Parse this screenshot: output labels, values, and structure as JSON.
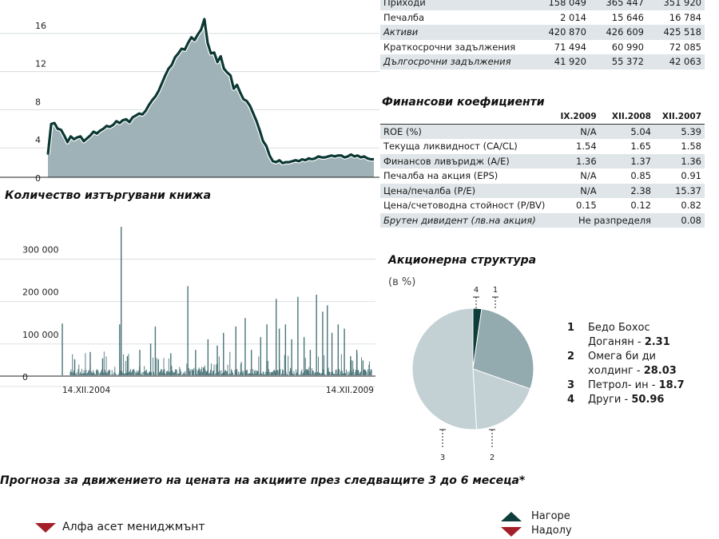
{
  "colors": {
    "area": "#9fb2b7",
    "line": "#0c3834",
    "bar": "#4a7478",
    "pie_main": "#c3d0d4",
    "pie_mid": "#93aaaf",
    "pie_dark": "#0f3e3a",
    "shade": "#dfe5e8",
    "down": "#a3202a"
  },
  "chart_data": [
    {
      "type": "area",
      "yticks": [
        "16",
        "12",
        "8",
        "4",
        "0"
      ],
      "ylim": [
        0,
        17
      ],
      "x": [
        0,
        1,
        2,
        3,
        4,
        5,
        6,
        7,
        8,
        9,
        10,
        11,
        12,
        13,
        14,
        15,
        16,
        17,
        18,
        19,
        20,
        21,
        22,
        23,
        24,
        25,
        26,
        27,
        28,
        29,
        30,
        31,
        32,
        33,
        34,
        35,
        36,
        37,
        38,
        39,
        40,
        41,
        42,
        43,
        44,
        45,
        46,
        47,
        48,
        49,
        50,
        51,
        52,
        53,
        54,
        55,
        56,
        57,
        58,
        59,
        60,
        61,
        62,
        63,
        64,
        65,
        66,
        67,
        68,
        69,
        70,
        71,
        72,
        73,
        74,
        75,
        76,
        77,
        78,
        79,
        80,
        81,
        82,
        83,
        84,
        85,
        86,
        87,
        88,
        89,
        90,
        91,
        92,
        93,
        94,
        95,
        96,
        97,
        98,
        99,
        100
      ],
      "values": [
        2.3,
        5.5,
        5.6,
        5.0,
        4.9,
        4.3,
        3.6,
        4.2,
        3.9,
        4.1,
        4.2,
        3.7,
        4.0,
        4.3,
        4.7,
        4.5,
        4.8,
        5.0,
        5.3,
        5.2,
        5.4,
        5.8,
        5.6,
        5.9,
        6.0,
        5.7,
        6.2,
        6.4,
        6.6,
        6.5,
        6.9,
        7.5,
        8.0,
        8.4,
        9.0,
        9.8,
        10.6,
        11.3,
        11.7,
        12.5,
        12.9,
        13.4,
        13.3,
        14.0,
        14.6,
        14.3,
        14.9,
        15.4,
        16.5,
        14.0,
        12.9,
        13.0,
        12.0,
        12.6,
        11.3,
        10.9,
        10.6,
        9.2,
        9.6,
        8.8,
        8.1,
        7.9,
        7.4,
        6.6,
        5.8,
        4.8,
        3.7,
        3.2,
        2.2,
        1.6,
        1.5,
        1.7,
        1.4,
        1.5,
        1.5,
        1.6,
        1.7,
        1.6,
        1.8,
        1.7,
        1.9,
        1.8,
        1.9,
        2.1,
        2.0,
        2.0,
        2.1,
        2.2,
        2.1,
        2.2,
        2.2,
        2.0,
        2.1,
        2.3,
        2.1,
        2.2,
        2.0,
        2.1,
        1.9,
        1.8,
        1.8
      ]
    },
    {
      "type": "bar",
      "title": "Количество изтъргувани книжа",
      "yticks": [
        "300 000",
        "200 000",
        "100 000",
        "0"
      ],
      "ylim": [
        0,
        350000
      ],
      "xlabels": [
        "14.XII.2004",
        "14.XII.2009"
      ],
      "spikes": [
        {
          "x": 0.0,
          "value": 122000
        },
        {
          "x": 0.04,
          "value": 38000
        },
        {
          "x": 0.09,
          "value": 55000
        },
        {
          "x": 0.13,
          "value": 40000
        },
        {
          "x": 0.185,
          "value": 120000
        },
        {
          "x": 0.19,
          "value": 350000
        },
        {
          "x": 0.21,
          "value": 45000
        },
        {
          "x": 0.25,
          "value": 60000
        },
        {
          "x": 0.285,
          "value": 75000
        },
        {
          "x": 0.31,
          "value": 38000
        },
        {
          "x": 0.3,
          "value": 115000
        },
        {
          "x": 0.35,
          "value": 52000
        },
        {
          "x": 0.405,
          "value": 210000
        },
        {
          "x": 0.43,
          "value": 60000
        },
        {
          "x": 0.47,
          "value": 85000
        },
        {
          "x": 0.5,
          "value": 70000
        },
        {
          "x": 0.52,
          "value": 100000
        },
        {
          "x": 0.56,
          "value": 115000
        },
        {
          "x": 0.59,
          "value": 135000
        },
        {
          "x": 0.61,
          "value": 60000
        },
        {
          "x": 0.64,
          "value": 90000
        },
        {
          "x": 0.66,
          "value": 120000
        },
        {
          "x": 0.69,
          "value": 180000
        },
        {
          "x": 0.7,
          "value": 110000
        },
        {
          "x": 0.72,
          "value": 120000
        },
        {
          "x": 0.74,
          "value": 85000
        },
        {
          "x": 0.76,
          "value": 185000
        },
        {
          "x": 0.78,
          "value": 90000
        },
        {
          "x": 0.8,
          "value": 60000
        },
        {
          "x": 0.82,
          "value": 190000
        },
        {
          "x": 0.84,
          "value": 150000
        },
        {
          "x": 0.855,
          "value": 165000
        },
        {
          "x": 0.87,
          "value": 100000
        },
        {
          "x": 0.89,
          "value": 120000
        },
        {
          "x": 0.91,
          "value": 110000
        },
        {
          "x": 0.93,
          "value": 45000
        },
        {
          "x": 0.95,
          "value": 60000
        },
        {
          "x": 0.97,
          "value": 35000
        },
        {
          "x": 0.99,
          "value": 25000
        }
      ]
    },
    {
      "type": "pie",
      "title": "Акционерна структура",
      "unit": "(в %)",
      "slices": [
        {
          "id": "1",
          "name": "Бедо Бохос Доганян",
          "value": 2.31
        },
        {
          "id": "2",
          "name": "Омега би ди холдинг",
          "value": 28.03
        },
        {
          "id": "3",
          "name": "Петрол- ин",
          "value": 18.7
        },
        {
          "id": "4",
          "name": "Други",
          "value": 50.96
        }
      ]
    },
    {
      "type": "table",
      "rows": [
        {
          "label": "Приходи",
          "v": [
            "158 049",
            "365 447",
            "351 920"
          ],
          "shade": true
        },
        {
          "label": "Печалба",
          "v": [
            "2 014",
            "15 646",
            "16 784"
          ],
          "shade": false
        },
        {
          "label": "Активи",
          "v": [
            "420 870",
            "426 609",
            "425 518"
          ],
          "shade": true
        },
        {
          "label": "Краткосрочни задължения",
          "v": [
            "71 494",
            "60 990",
            "72 085"
          ],
          "shade": false
        },
        {
          "label": "Дългосрочни задължения",
          "v": [
            "41 920",
            "55 372",
            "42 063"
          ],
          "shade": true
        }
      ]
    },
    {
      "type": "table",
      "title": "Финансови коефициенти",
      "columns": [
        "IX.2009",
        "XII.2008",
        "XII.2007"
      ],
      "rows": [
        {
          "label": "ROE (%)",
          "v": [
            "N/A",
            "5.04",
            "5.39"
          ],
          "shade": true
        },
        {
          "label": "Текуща ликвидност (CA/CL)",
          "v": [
            "1.54",
            "1.65",
            "1.58"
          ],
          "shade": false
        },
        {
          "label": "Финансов ливъридж (A/E)",
          "v": [
            "1.36",
            "1.37",
            "1.36"
          ],
          "shade": true
        },
        {
          "label": "Печалба на акция (EPS)",
          "v": [
            "N/A",
            "0.85",
            "0.91"
          ],
          "shade": false
        },
        {
          "label": "Цена/печалба (P/E)",
          "v": [
            "N/A",
            "2.38",
            "15.37"
          ],
          "shade": true
        },
        {
          "label": "Цена/счетоводна стойност (P/BV)",
          "v": [
            "0.15",
            "0.12",
            "0.82"
          ],
          "shade": false
        }
      ],
      "dividend": {
        "label": "Брутен дивидент (лв.на акция)",
        "v2008": "Не разпределя",
        "v2007": "0.08"
      }
    }
  ],
  "forecast": {
    "title": "Прогноза за движението на цената на акциите през следващите 3 до 6 месеца*",
    "up_label": "Нагоре",
    "down_label": "Надолу",
    "entry": "Алфа асет мениджмънт"
  }
}
